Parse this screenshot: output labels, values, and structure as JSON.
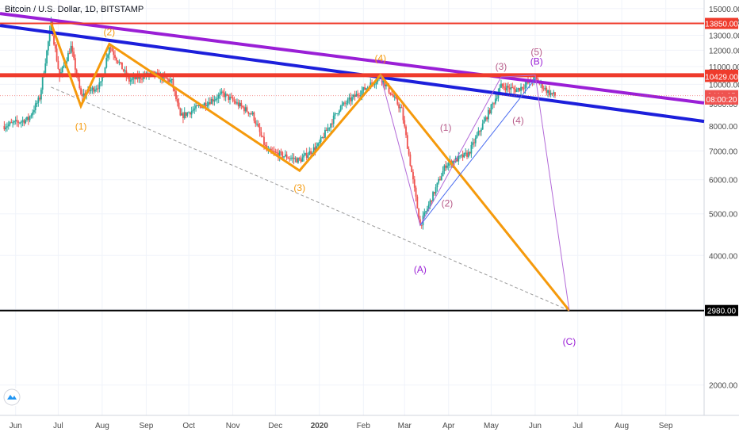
{
  "header": {
    "title": "Bitcoin / U.S. Dollar, 1D, BITSTAMP"
  },
  "colors": {
    "grid": "#f0f3fa",
    "axis_text": "#4a4a4a",
    "up": "#26a69a",
    "down": "#ef5350",
    "orange": "#f59a0c",
    "purple": "#9a1fd6",
    "blue": "#1c1fdb",
    "red": "#ef3b2c",
    "black": "#000000",
    "wave_pink": "#b85c8a",
    "thin_purple": "#b36ad8",
    "tag_bg": "#ef3b2c",
    "price_tag": "#ef5350"
  },
  "chart_data": {
    "type": "candlestick",
    "title": "Bitcoin / U.S. Dollar, 1D, BITSTAMP",
    "x_ticks": [
      "Jun",
      "Jul",
      "Aug",
      "Sep",
      "Oct",
      "Nov",
      "Dec",
      "2020",
      "Feb",
      "Mar",
      "Apr",
      "May",
      "Jun",
      "Jul",
      "Aug",
      "Sep"
    ],
    "y_ticks": [
      2000,
      3000,
      4000,
      5000,
      6000,
      7000,
      8000,
      9000,
      10000,
      11000,
      12000,
      13000,
      14000,
      15000
    ],
    "ylim": [
      1700,
      15700
    ],
    "log_scale": true,
    "date_range": [
      "2019-05-21",
      "2020-09-28"
    ],
    "grid": true,
    "price_path": [
      [
        "2019-05-24",
        8000
      ],
      [
        "2019-06-10",
        8300
      ],
      [
        "2019-06-18",
        9300
      ],
      [
        "2019-06-26",
        13850
      ],
      [
        "2019-07-02",
        10400
      ],
      [
        "2019-07-10",
        12200
      ],
      [
        "2019-07-17",
        9400
      ],
      [
        "2019-07-31",
        10000
      ],
      [
        "2019-08-06",
        12300
      ],
      [
        "2019-08-20",
        10200
      ],
      [
        "2019-09-05",
        10600
      ],
      [
        "2019-09-19",
        10150
      ],
      [
        "2019-09-25",
        8400
      ],
      [
        "2019-10-25",
        9500
      ],
      [
        "2019-11-15",
        8500
      ],
      [
        "2019-11-25",
        7000
      ],
      [
        "2019-12-18",
        6650
      ],
      [
        "2019-12-31",
        7200
      ],
      [
        "2020-01-15",
        8800
      ],
      [
        "2020-02-13",
        10400
      ],
      [
        "2020-02-28",
        8700
      ],
      [
        "2020-03-12",
        4700
      ],
      [
        "2020-03-30",
        6500
      ],
      [
        "2020-04-15",
        6900
      ],
      [
        "2020-04-30",
        8700
      ],
      [
        "2020-05-08",
        9900
      ],
      [
        "2020-05-19",
        9700
      ],
      [
        "2020-06-01",
        10300
      ],
      [
        "2020-06-10",
        9600
      ],
      [
        "2020-06-15",
        9411
      ]
    ],
    "price_levels": [
      {
        "value": 13850,
        "label": "13850.00",
        "color": "red"
      },
      {
        "value": 10500,
        "label": "10500.00",
        "color": "red"
      },
      {
        "value": 2980,
        "label": "2980.00",
        "color": "black"
      }
    ],
    "price_tags": [
      {
        "value": 10429,
        "label": "10429.00",
        "color": "red"
      },
      {
        "value": 9411.05,
        "label": "9411.05",
        "color": "price"
      },
      {
        "value": 9240,
        "label": "08:00:20",
        "color": "price"
      }
    ],
    "trendlines": [
      {
        "name": "purple-resistance",
        "color": "purple",
        "points": [
          [
            "2019-05-21",
            14600
          ],
          [
            "2020-09-28",
            9050
          ]
        ]
      },
      {
        "name": "blue-resistance",
        "color": "blue",
        "points": [
          [
            "2019-05-21",
            13700
          ],
          [
            "2020-09-28",
            8200
          ]
        ]
      },
      {
        "name": "dashed-support",
        "color": "grey",
        "points": [
          [
            "2019-06-26",
            9850
          ],
          [
            "2020-06-25",
            2980
          ]
        ]
      }
    ],
    "wave_lines": [
      {
        "color": "orange",
        "points": [
          [
            "2019-06-26",
            13850
          ],
          [
            "2019-07-17",
            8900
          ],
          [
            "2019-08-06",
            12400
          ],
          [
            "2019-12-18",
            6300
          ],
          [
            "2020-02-13",
            10500
          ],
          [
            "2020-06-25",
            2980
          ]
        ]
      },
      {
        "color": "thin_purple",
        "points": [
          [
            "2020-02-13",
            10500
          ],
          [
            "2020-03-12",
            4700
          ],
          [
            "2020-05-08",
            10400
          ],
          [
            "2020-06-01",
            10500
          ],
          [
            "2020-06-25",
            2980
          ]
        ]
      },
      {
        "color": "thin_blue",
        "points": [
          [
            "2020-03-12",
            4700
          ],
          [
            "2020-06-01",
            10300
          ]
        ]
      }
    ],
    "annotations": [
      {
        "text": "(1)",
        "color": "orange",
        "at": [
          "2019-07-17",
          7850
        ]
      },
      {
        "text": "(2)",
        "color": "orange",
        "at": [
          "2019-08-06",
          13000
        ]
      },
      {
        "text": "(3)",
        "color": "orange",
        "at": [
          "2019-12-18",
          5650
        ]
      },
      {
        "text": "(4)",
        "color": "orange",
        "at": [
          "2020-02-13",
          11300
        ]
      },
      {
        "text": "(1)",
        "color": "wave_pink",
        "at": [
          "2020-03-30",
          7800
        ]
      },
      {
        "text": "(2)",
        "color": "wave_pink",
        "at": [
          "2020-03-31",
          5200
        ]
      },
      {
        "text": "(3)",
        "color": "wave_pink",
        "at": [
          "2020-05-08",
          10800
        ]
      },
      {
        "text": "(4)",
        "color": "wave_pink",
        "at": [
          "2020-05-20",
          8100
        ]
      },
      {
        "text": "(5)",
        "color": "wave_pink",
        "at": [
          "2020-06-02",
          11700
        ]
      },
      {
        "text": "(A)",
        "color": "purple",
        "at": [
          "2020-03-12",
          3650
        ]
      },
      {
        "text": "(B)",
        "color": "purple",
        "at": [
          "2020-06-02",
          11100
        ]
      },
      {
        "text": "(C)",
        "color": "purple",
        "at": [
          "2020-06-25",
          2480
        ]
      }
    ]
  }
}
